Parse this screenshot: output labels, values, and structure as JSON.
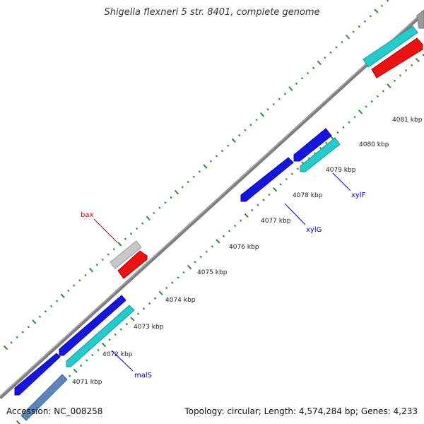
{
  "title": "Shigella flexneri 5 str. 8401, complete genome",
  "footer": {
    "accession": "Accession: NC_008258",
    "summary": "Topology: circular; Length: 4,574,284 bp; Genes: 4,233"
  },
  "colors": {
    "backbone": "#8a8a8a",
    "tick": "#2e8b2e",
    "blue_feature": "#1515e0",
    "cyan_feature": "#22cccc",
    "red_feature": "#ee1111",
    "grey_feature": "#c8c8c8",
    "steel_feature": "#5a88bb",
    "label_blue": "#0000cc",
    "label_red": "#cc0000"
  },
  "ticks": [
    {
      "label": "4071 kbp"
    },
    {
      "label": "4072 kbp"
    },
    {
      "label": "4073 kbp"
    },
    {
      "label": "4074 kbp"
    },
    {
      "label": "4075 kbp"
    },
    {
      "label": "4076 kbp"
    },
    {
      "label": "4077 kbp"
    },
    {
      "label": "4078 kbp"
    },
    {
      "label": "4079 kbp"
    },
    {
      "label": "4080 kbp"
    },
    {
      "label": "4081 kbp"
    }
  ],
  "gene_labels": {
    "bax": "bax",
    "xylG": "xylG",
    "xylF": "xylF",
    "malS": "malS"
  }
}
